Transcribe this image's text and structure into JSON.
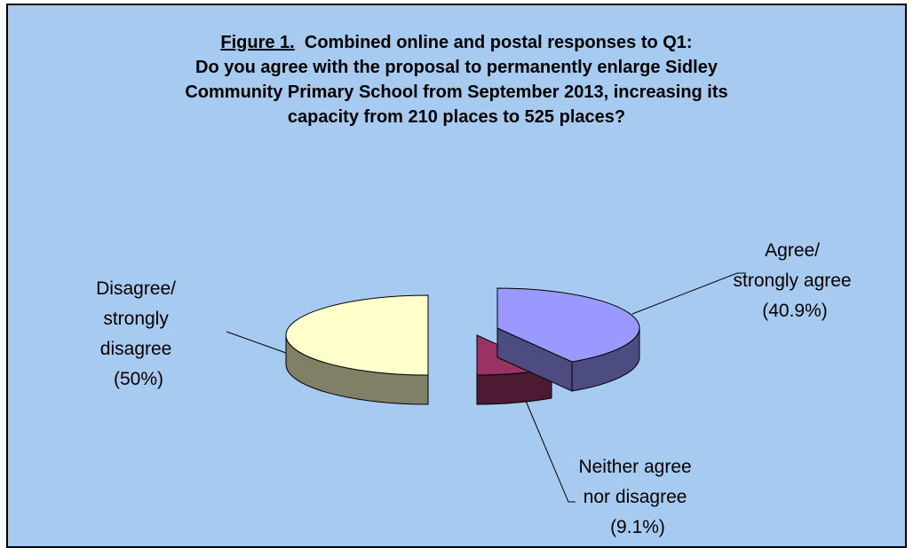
{
  "chart_data": {
    "type": "pie",
    "title_prefix": "Figure 1.",
    "title_lines": [
      "Combined online and postal responses to Q1:",
      "Do you agree with the proposal to permanently enlarge Sidley",
      "Community Primary School from September 2013, increasing its",
      "capacity from 210 places to 525 places?"
    ],
    "slices": [
      {
        "key": "agree",
        "label_lines": [
          "Agree/",
          "strongly agree",
          "(40.9%)"
        ],
        "value": 40.9,
        "top_color": "#9999ff",
        "side_color": "#4c4c80"
      },
      {
        "key": "neither",
        "label_lines": [
          "Neither agree",
          "nor disagree",
          "(9.1%)"
        ],
        "value": 9.1,
        "top_color": "#993366",
        "side_color": "#4d1a33"
      },
      {
        "key": "disagree",
        "label_lines": [
          "Disagree/",
          "strongly",
          "disagree",
          "(50%)"
        ],
        "value": 50,
        "top_color": "#ffffcc",
        "side_color": "#808066"
      }
    ],
    "background_color": "#a6caf0"
  }
}
